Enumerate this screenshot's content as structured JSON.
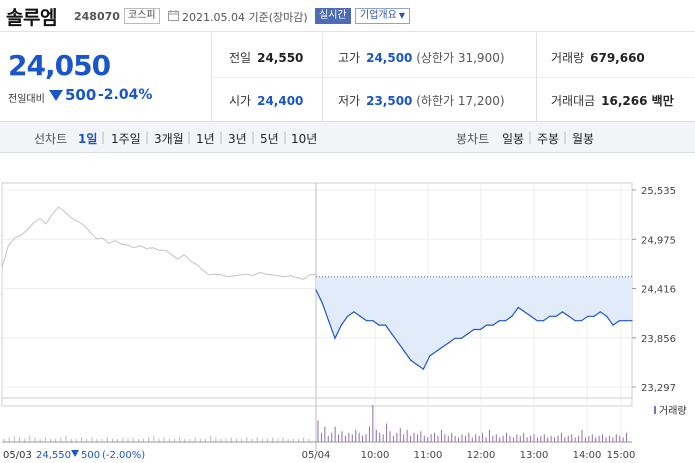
{
  "header": {
    "name": "솔루엠",
    "code": "248070",
    "market": "코스피",
    "date": "2021.05.04 기준(장마감)",
    "realtime_label": "실시간",
    "company_label": "기업개요"
  },
  "summary": {
    "price": "24,050",
    "change_label": "전일대비",
    "change_value": "500",
    "change_pct": "-2.04%",
    "prev_label": "전일",
    "prev_value": "24,550",
    "high_label": "고가",
    "high_value": "24,500",
    "high_sub": "(상한가 31,900)",
    "volume_label": "거래량",
    "volume_value": "679,660",
    "open_label": "시가",
    "open_value": "24,400",
    "low_label": "저가",
    "low_value": "23,500",
    "low_sub": "(하한가 17,200)",
    "amount_label": "거래대금",
    "amount_value": "16,266 백만"
  },
  "periods": {
    "line_label": "선차트",
    "line_items": [
      "1일",
      "1주일",
      "3개월",
      "1년",
      "3년",
      "5년",
      "10년"
    ],
    "selected": "1일",
    "candle_label": "봉차트",
    "candle_items": [
      "일봉",
      "주봉",
      "월봉"
    ]
  },
  "footer": {
    "date": "05/03",
    "prev_close": "24,550",
    "change": "500",
    "change_pct": "(-2.00%)"
  },
  "colors": {
    "accent": "#1a56c8",
    "line_today": "#1f56c8",
    "line_prev": "#c4c4c4",
    "area_fill": "#e2ebf9",
    "volume_bar": "#8b6fa8"
  },
  "chart_data": {
    "type": "line",
    "ylim": [
      23297,
      25535
    ],
    "y_ticks": [
      "25,535",
      "24,975",
      "24,416",
      "23,856",
      "23,297"
    ],
    "x_ticks": [
      "05/04",
      "10:00",
      "11:00",
      "12:00",
      "13:00",
      "14:00",
      "15:00"
    ],
    "prev_close": 24550,
    "volume_legend": "거래량",
    "series": [
      {
        "name": "05/03",
        "x": [
          0,
          2,
          4,
          6,
          8,
          10,
          12,
          14,
          16,
          18,
          20,
          22,
          24,
          26,
          28,
          30,
          32,
          34,
          36,
          38,
          40,
          42,
          44,
          46,
          48,
          50,
          52,
          54,
          56,
          58,
          60,
          62,
          64,
          66,
          68,
          70,
          72,
          74,
          76,
          78,
          80,
          82,
          84,
          86,
          88,
          90,
          92,
          94,
          96,
          98,
          100
        ],
        "values": [
          24650,
          24900,
          24990,
          25020,
          25080,
          25160,
          25210,
          25150,
          25260,
          25340,
          25290,
          25220,
          25180,
          25140,
          25060,
          24980,
          24990,
          24930,
          24960,
          24920,
          24910,
          24880,
          24900,
          24870,
          24880,
          24850,
          24850,
          24800,
          24750,
          24800,
          24730,
          24690,
          24620,
          24570,
          24580,
          24570,
          24550,
          24560,
          24570,
          24580,
          24560,
          24600,
          24580,
          24570,
          24560,
          24550,
          24560,
          24540,
          24520,
          24570,
          24580
        ]
      },
      {
        "name": "05/04",
        "x": [
          0,
          3,
          6,
          9,
          12,
          15,
          18,
          21,
          24,
          27,
          30,
          33,
          36,
          39,
          42,
          45,
          48,
          51,
          54,
          57,
          60,
          63,
          66,
          69,
          72,
          75,
          78,
          81,
          84,
          87,
          90,
          93,
          96,
          99,
          102,
          105,
          108,
          111,
          114,
          117,
          120,
          123,
          126,
          129,
          132,
          135,
          138,
          141,
          144,
          147,
          150
        ],
        "values": [
          24400,
          24250,
          24050,
          23850,
          24000,
          24100,
          24150,
          24100,
          24050,
          24050,
          24000,
          24000,
          23900,
          23800,
          23700,
          23600,
          23550,
          23500,
          23650,
          23700,
          23750,
          23800,
          23850,
          23850,
          23900,
          23950,
          23950,
          24000,
          24000,
          24050,
          24050,
          24100,
          24200,
          24150,
          24100,
          24050,
          24050,
          24100,
          24100,
          24150,
          24100,
          24050,
          24050,
          24100,
          24100,
          24150,
          24100,
          24000,
          24050,
          24050,
          24050
        ]
      }
    ],
    "volume": {
      "prev": [
        2,
        3,
        4,
        3,
        2,
        4,
        3,
        2,
        3,
        2,
        2,
        3,
        4,
        2,
        2,
        3,
        2,
        3,
        2,
        2,
        3,
        2,
        2,
        3,
        2,
        3,
        2,
        2,
        3,
        4,
        2,
        3,
        2,
        2,
        3,
        2,
        2,
        3,
        2,
        2,
        4,
        3,
        2,
        2,
        3,
        2,
        2,
        3,
        2,
        3,
        2,
        2,
        3,
        2,
        3,
        2,
        2,
        2,
        3,
        2
      ],
      "today": [
        14,
        6,
        10,
        4,
        6,
        10,
        5,
        7,
        4,
        6,
        5,
        8,
        6,
        4,
        5,
        10,
        24,
        8,
        6,
        5,
        12,
        7,
        4,
        6,
        9,
        5,
        8,
        4,
        6,
        5,
        7,
        4,
        3,
        5,
        6,
        4,
        8,
        5,
        4,
        6,
        4,
        3,
        5,
        4,
        6,
        3,
        5,
        4,
        6,
        3,
        8,
        4,
        5,
        3,
        4,
        6,
        4,
        3,
        5,
        4,
        6,
        3,
        4,
        5,
        3,
        4,
        5,
        3,
        4,
        3,
        4,
        6,
        3,
        4,
        5,
        3,
        4,
        8,
        3,
        4,
        5,
        3,
        4,
        5,
        3,
        4,
        3,
        5,
        4,
        3,
        6
      ]
    }
  }
}
